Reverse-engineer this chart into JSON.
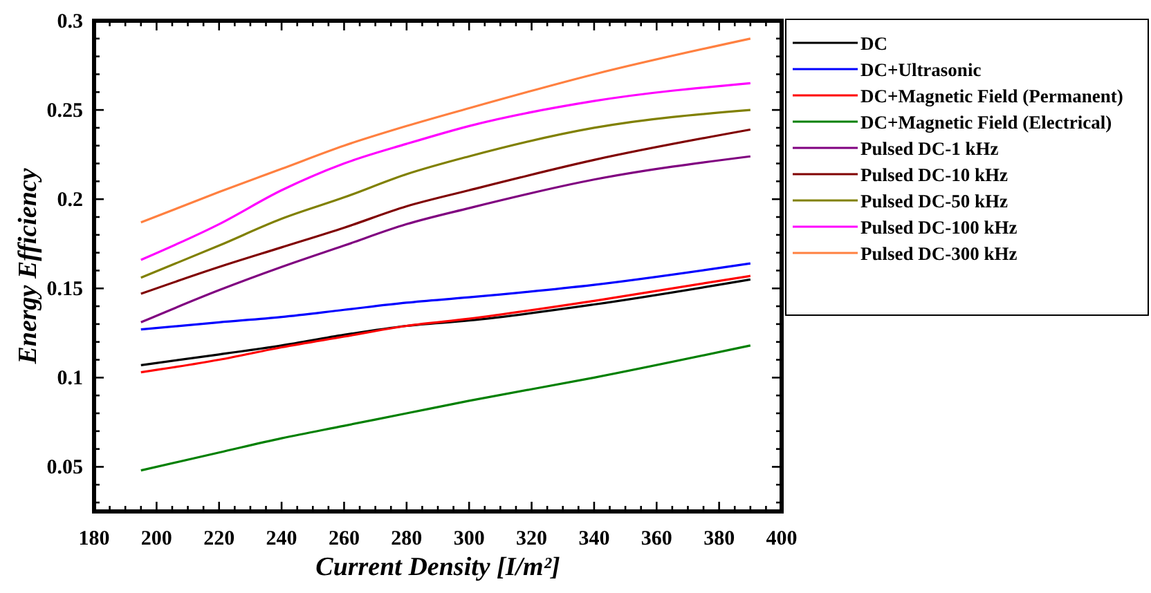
{
  "chart_data": {
    "type": "line",
    "xlabel": "Current Density [I/m²]",
    "ylabel": "Energy Efficiency",
    "x": [
      195,
      220,
      240,
      260,
      280,
      300,
      340,
      390
    ],
    "xlim": [
      180,
      400
    ],
    "ylim": [
      0.025,
      0.3
    ],
    "xticks": [
      180,
      {
        "value": 185,
        "label": null
      },
      {
        "value": 190,
        "label": null
      },
      {
        "value": 195,
        "label": null
      },
      200,
      {
        "value": 205,
        "label": null
      },
      {
        "value": 210,
        "label": null
      },
      {
        "value": 215,
        "label": null
      },
      220,
      {
        "value": 225,
        "label": null
      },
      {
        "value": 230,
        "label": null
      },
      {
        "value": 235,
        "label": null
      },
      240,
      {
        "value": 245,
        "label": null
      },
      {
        "value": 250,
        "label": null
      },
      {
        "value": 255,
        "label": null
      },
      260,
      {
        "value": 265,
        "label": null
      },
      {
        "value": 270,
        "label": null
      },
      {
        "value": 275,
        "label": null
      },
      280,
      {
        "value": 285,
        "label": null
      },
      {
        "value": 290,
        "label": null
      },
      {
        "value": 295,
        "label": null
      },
      300,
      {
        "value": 305,
        "label": null
      },
      {
        "value": 310,
        "label": null
      },
      {
        "value": 315,
        "label": null
      },
      320,
      {
        "value": 325,
        "label": null
      },
      {
        "value": 330,
        "label": null
      },
      {
        "value": 335,
        "label": null
      },
      340,
      {
        "value": 345,
        "label": null
      },
      {
        "value": 350,
        "label": null
      },
      {
        "value": 355,
        "label": null
      },
      360,
      {
        "value": 365,
        "label": null
      },
      {
        "value": 370,
        "label": null
      },
      {
        "value": 375,
        "label": null
      },
      380,
      {
        "value": 385,
        "label": null
      },
      {
        "value": 390,
        "label": null
      },
      {
        "value": 395,
        "label": null
      },
      400
    ],
    "yticks": [
      {
        "value": 0.03,
        "label": null
      },
      {
        "value": 0.04,
        "label": null
      },
      0.05,
      {
        "value": 0.06,
        "label": null
      },
      {
        "value": 0.07,
        "label": null
      },
      {
        "value": 0.08,
        "label": null
      },
      {
        "value": 0.09,
        "label": null
      },
      0.1,
      {
        "value": 0.11,
        "label": null
      },
      {
        "value": 0.12,
        "label": null
      },
      {
        "value": 0.13,
        "label": null
      },
      {
        "value": 0.14,
        "label": null
      },
      0.15,
      {
        "value": 0.16,
        "label": null
      },
      {
        "value": 0.17,
        "label": null
      },
      {
        "value": 0.18,
        "label": null
      },
      {
        "value": 0.19,
        "label": null
      },
      0.2,
      {
        "value": 0.21,
        "label": null
      },
      {
        "value": 0.22,
        "label": null
      },
      {
        "value": 0.23,
        "label": null
      },
      {
        "value": 0.24,
        "label": null
      },
      0.25,
      {
        "value": 0.26,
        "label": null
      },
      {
        "value": 0.27,
        "label": null
      },
      {
        "value": 0.28,
        "label": null
      },
      {
        "value": 0.29,
        "label": null
      },
      0.3
    ],
    "grid": false,
    "legend": "right",
    "marker": "none",
    "line_style": "solid",
    "series": [
      {
        "name": "DC",
        "color": "#000000",
        "values": [
          0.107,
          0.113,
          0.118,
          0.124,
          0.129,
          0.132,
          0.141,
          0.155
        ]
      },
      {
        "name": "DC+Ultrasonic",
        "color": "#0000ff",
        "values": [
          0.127,
          0.131,
          0.134,
          0.138,
          0.142,
          0.145,
          0.152,
          0.164
        ]
      },
      {
        "name": "DC+Magnetic Field (Permanent)",
        "color": "#ff0000",
        "values": [
          0.103,
          0.11,
          0.117,
          0.123,
          0.129,
          0.133,
          0.143,
          0.157
        ]
      },
      {
        "name": "DC+Magnetic Field (Electrical)",
        "color": "#008000",
        "values": [
          0.048,
          0.058,
          0.066,
          0.073,
          0.08,
          0.087,
          0.1,
          0.118
        ]
      },
      {
        "name": "Pulsed DC-1 kHz",
        "color": "#800080",
        "values": [
          0.131,
          0.149,
          0.162,
          0.174,
          0.186,
          0.195,
          0.211,
          0.224
        ]
      },
      {
        "name": "Pulsed DC-10 kHz",
        "color": "#800000",
        "values": [
          0.147,
          0.162,
          0.173,
          0.184,
          0.196,
          0.205,
          0.222,
          0.239
        ]
      },
      {
        "name": "Pulsed DC-50 kHz",
        "color": "#808000",
        "values": [
          0.156,
          0.174,
          0.189,
          0.201,
          0.214,
          0.224,
          0.24,
          0.25
        ]
      },
      {
        "name": "Pulsed DC-100 kHz",
        "color": "#ff00ff",
        "values": [
          0.166,
          0.186,
          0.205,
          0.22,
          0.231,
          0.241,
          0.255,
          0.265
        ]
      },
      {
        "name": "Pulsed DC-300 kHz",
        "color": "#ff8040",
        "values": [
          0.187,
          0.204,
          0.217,
          0.23,
          0.241,
          0.251,
          0.27,
          0.29
        ]
      }
    ]
  }
}
